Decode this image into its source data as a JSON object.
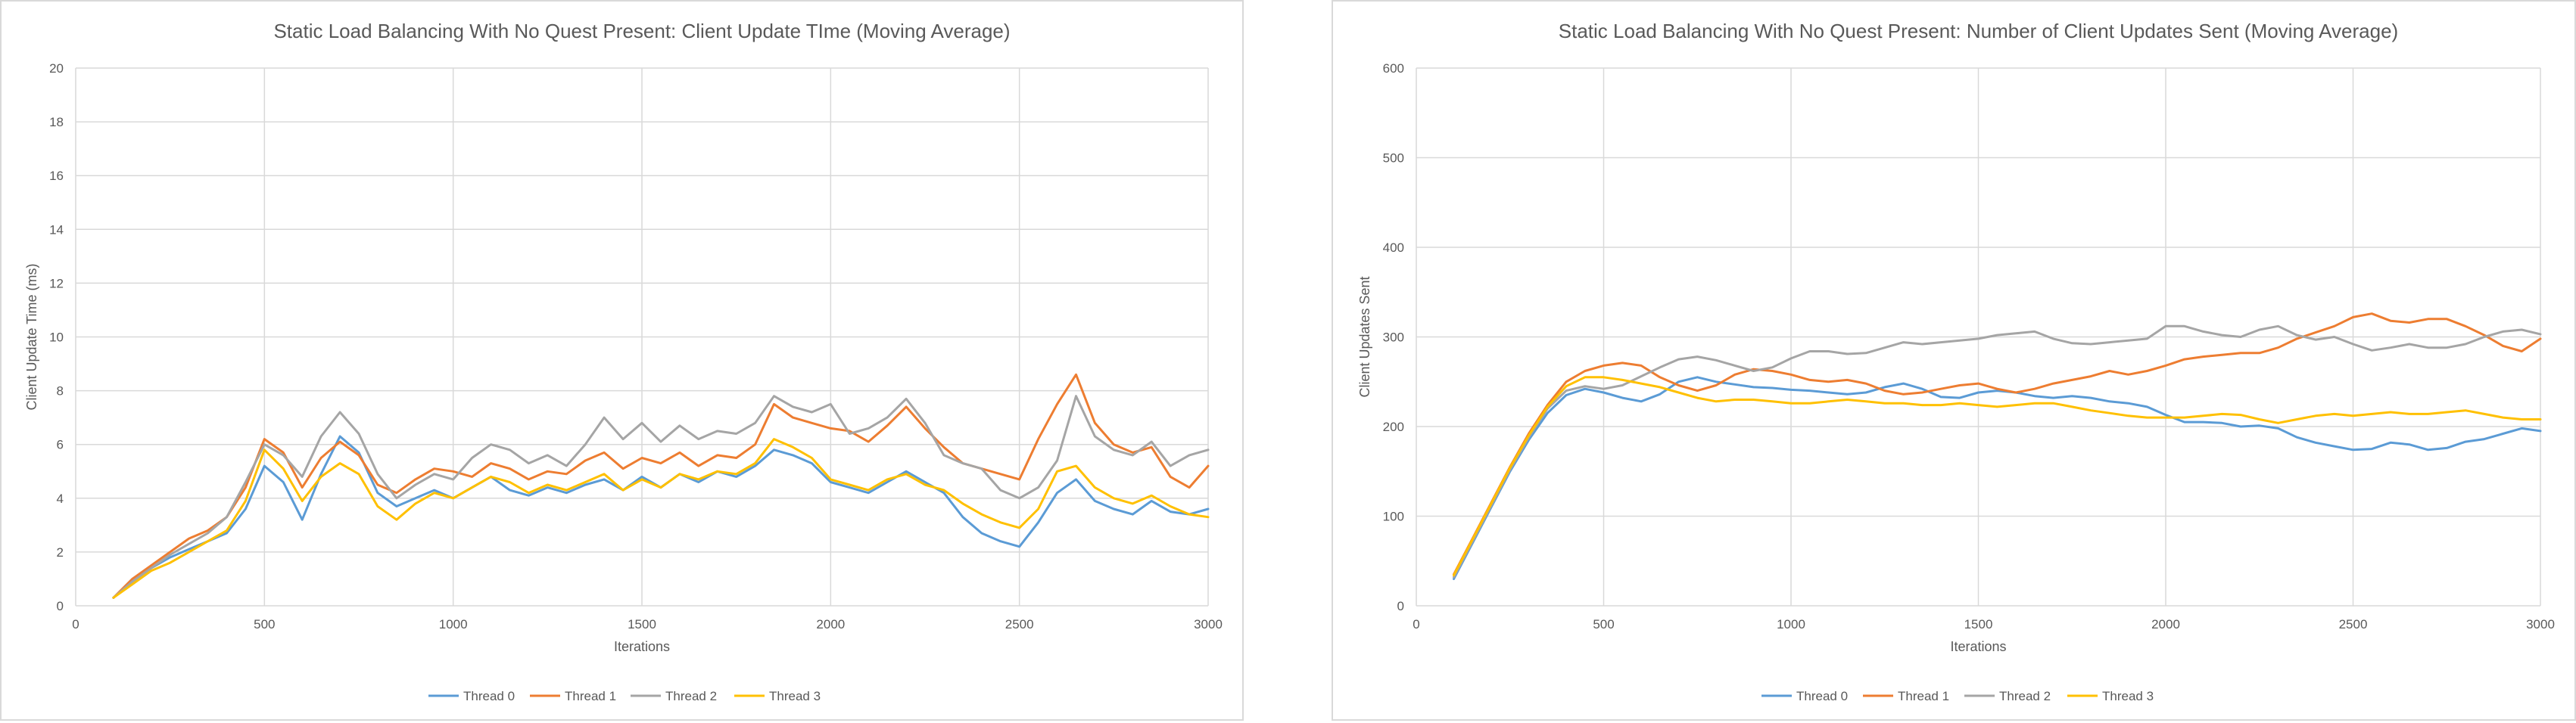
{
  "chart_data": [
    {
      "type": "line",
      "title": "Static Load Balancing With No Quest Present: Client Update TIme (Moving Average)",
      "xlabel": "Iterations",
      "ylabel": "Client Update Time (ms)",
      "xlim": [
        0,
        3000
      ],
      "ylim": [
        0,
        20
      ],
      "x_ticks": [
        0,
        500,
        1000,
        1500,
        2000,
        2500,
        3000
      ],
      "y_ticks": [
        0,
        2,
        4,
        6,
        8,
        10,
        12,
        14,
        16,
        18,
        20
      ],
      "grid": true,
      "legend": "bottom",
      "x": [
        100,
        150,
        200,
        250,
        300,
        350,
        400,
        450,
        500,
        550,
        600,
        650,
        700,
        750,
        800,
        850,
        900,
        950,
        1000,
        1050,
        1100,
        1150,
        1200,
        1250,
        1300,
        1350,
        1400,
        1450,
        1500,
        1550,
        1600,
        1650,
        1700,
        1750,
        1800,
        1850,
        1900,
        1950,
        2000,
        2050,
        2100,
        2150,
        2200,
        2250,
        2300,
        2350,
        2400,
        2450,
        2500,
        2550,
        2600,
        2650,
        2700,
        2750,
        2800,
        2850,
        2900,
        2950,
        3000
      ],
      "series": [
        {
          "name": "Thread 0",
          "color": "#5b9bd5",
          "values": [
            0.3,
            0.9,
            1.4,
            1.8,
            2.1,
            2.4,
            2.7,
            3.6,
            5.2,
            4.6,
            3.2,
            4.9,
            6.3,
            5.7,
            4.2,
            3.7,
            4.0,
            4.3,
            4.0,
            4.4,
            4.8,
            4.3,
            4.1,
            4.4,
            4.2,
            4.5,
            4.7,
            4.3,
            4.8,
            4.4,
            4.9,
            4.6,
            5.0,
            4.8,
            5.2,
            5.8,
            5.6,
            5.3,
            4.6,
            4.4,
            4.2,
            4.6,
            5.0,
            4.6,
            4.2,
            3.3,
            2.7,
            2.4,
            2.2,
            3.1,
            4.2,
            4.7,
            3.9,
            3.6,
            3.4,
            3.9,
            3.5,
            3.4,
            3.6
          ]
        },
        {
          "name": "Thread 1",
          "color": "#ed7d31",
          "values": [
            0.3,
            1.0,
            1.5,
            2.0,
            2.5,
            2.8,
            3.3,
            4.4,
            6.2,
            5.7,
            4.4,
            5.5,
            6.1,
            5.6,
            4.5,
            4.2,
            4.7,
            5.1,
            5.0,
            4.8,
            5.3,
            5.1,
            4.7,
            5.0,
            4.9,
            5.4,
            5.7,
            5.1,
            5.5,
            5.3,
            5.7,
            5.2,
            5.6,
            5.5,
            6.0,
            7.5,
            7.0,
            6.8,
            6.6,
            6.5,
            6.1,
            6.7,
            7.4,
            6.6,
            5.9,
            5.3,
            5.1,
            4.9,
            4.7,
            6.2,
            7.5,
            8.6,
            6.8,
            6.0,
            5.7,
            5.9,
            4.8,
            4.4,
            5.2
          ]
        },
        {
          "name": "Thread 2",
          "color": "#a5a5a5",
          "values": [
            0.3,
            0.9,
            1.4,
            1.9,
            2.3,
            2.7,
            3.3,
            4.6,
            6.0,
            5.6,
            4.8,
            6.3,
            7.2,
            6.4,
            4.9,
            4.0,
            4.5,
            4.9,
            4.7,
            5.5,
            6.0,
            5.8,
            5.3,
            5.6,
            5.2,
            6.0,
            7.0,
            6.2,
            6.8,
            6.1,
            6.7,
            6.2,
            6.5,
            6.4,
            6.8,
            7.8,
            7.4,
            7.2,
            7.5,
            6.4,
            6.6,
            7.0,
            7.7,
            6.8,
            5.6,
            5.3,
            5.1,
            4.3,
            4.0,
            4.4,
            5.4,
            7.8,
            6.3,
            5.8,
            5.6,
            6.1,
            5.2,
            5.6,
            5.8
          ]
        },
        {
          "name": "Thread 3",
          "color": "#ffc000",
          "values": [
            0.3,
            0.8,
            1.3,
            1.6,
            2.0,
            2.4,
            2.8,
            3.9,
            5.8,
            5.1,
            3.9,
            4.8,
            5.3,
            4.9,
            3.7,
            3.2,
            3.8,
            4.2,
            4.0,
            4.4,
            4.8,
            4.6,
            4.2,
            4.5,
            4.3,
            4.6,
            4.9,
            4.3,
            4.7,
            4.4,
            4.9,
            4.7,
            5.0,
            4.9,
            5.3,
            6.2,
            5.9,
            5.5,
            4.7,
            4.5,
            4.3,
            4.7,
            4.9,
            4.5,
            4.3,
            3.8,
            3.4,
            3.1,
            2.9,
            3.6,
            5.0,
            5.2,
            4.4,
            4.0,
            3.8,
            4.1,
            3.7,
            3.4,
            3.3
          ]
        }
      ]
    },
    {
      "type": "line",
      "title": "Static Load Balancing With No Quest Present: Number of Client Updates Sent (Moving Average)",
      "xlabel": "Iterations",
      "ylabel": "Client Updates Sent",
      "xlim": [
        0,
        3000
      ],
      "ylim": [
        0,
        600
      ],
      "x_ticks": [
        0,
        500,
        1000,
        1500,
        2000,
        2500,
        3000
      ],
      "y_ticks": [
        0,
        100,
        200,
        300,
        400,
        500,
        600
      ],
      "grid": true,
      "legend": "bottom",
      "x": [
        100,
        150,
        200,
        250,
        300,
        350,
        400,
        450,
        500,
        550,
        600,
        650,
        700,
        750,
        800,
        850,
        900,
        950,
        1000,
        1050,
        1100,
        1150,
        1200,
        1250,
        1300,
        1350,
        1400,
        1450,
        1500,
        1550,
        1600,
        1650,
        1700,
        1750,
        1800,
        1850,
        1900,
        1950,
        2000,
        2050,
        2100,
        2150,
        2200,
        2250,
        2300,
        2350,
        2400,
        2450,
        2500,
        2550,
        2600,
        2650,
        2700,
        2750,
        2800,
        2850,
        2900,
        2950,
        3000
      ],
      "series": [
        {
          "name": "Thread 0",
          "color": "#5b9bd5",
          "values": [
            30,
            70,
            110,
            150,
            185,
            215,
            235,
            242,
            238,
            232,
            228,
            236,
            250,
            255,
            250,
            247,
            244,
            243,
            241,
            240,
            238,
            236,
            238,
            244,
            248,
            242,
            233,
            232,
            238,
            240,
            238,
            234,
            232,
            234,
            232,
            228,
            226,
            222,
            213,
            205,
            205,
            204,
            200,
            201,
            198,
            188,
            182,
            178,
            174,
            175,
            182,
            180,
            174,
            176,
            183,
            186,
            192,
            198,
            195
          ]
        },
        {
          "name": "Thread 1",
          "color": "#ed7d31",
          "values": [
            35,
            75,
            115,
            155,
            192,
            224,
            250,
            262,
            268,
            271,
            268,
            255,
            246,
            240,
            246,
            258,
            264,
            262,
            258,
            252,
            250,
            252,
            248,
            240,
            236,
            238,
            242,
            246,
            248,
            242,
            238,
            242,
            248,
            252,
            256,
            262,
            258,
            262,
            268,
            275,
            278,
            280,
            282,
            282,
            288,
            298,
            305,
            312,
            322,
            326,
            318,
            316,
            320,
            320,
            312,
            302,
            290,
            284,
            298
          ]
        },
        {
          "name": "Thread 2",
          "color": "#a5a5a5",
          "values": [
            32,
            72,
            112,
            152,
            188,
            220,
            240,
            245,
            242,
            246,
            256,
            266,
            275,
            278,
            274,
            268,
            262,
            266,
            276,
            284,
            284,
            281,
            282,
            288,
            294,
            292,
            294,
            296,
            298,
            302,
            304,
            306,
            298,
            293,
            292,
            294,
            296,
            298,
            312,
            312,
            306,
            302,
            300,
            308,
            312,
            302,
            297,
            300,
            292,
            285,
            288,
            292,
            288,
            288,
            292,
            300,
            306,
            308,
            303
          ]
        },
        {
          "name": "Thread 3",
          "color": "#ffc000",
          "values": [
            34,
            74,
            114,
            154,
            190,
            222,
            245,
            255,
            255,
            252,
            248,
            244,
            238,
            232,
            228,
            230,
            230,
            228,
            226,
            226,
            228,
            230,
            228,
            226,
            226,
            224,
            224,
            226,
            224,
            222,
            224,
            226,
            226,
            222,
            218,
            215,
            212,
            210,
            210,
            210,
            212,
            214,
            213,
            208,
            204,
            208,
            212,
            214,
            212,
            214,
            216,
            214,
            214,
            216,
            218,
            214,
            210,
            208,
            208
          ]
        }
      ]
    }
  ]
}
